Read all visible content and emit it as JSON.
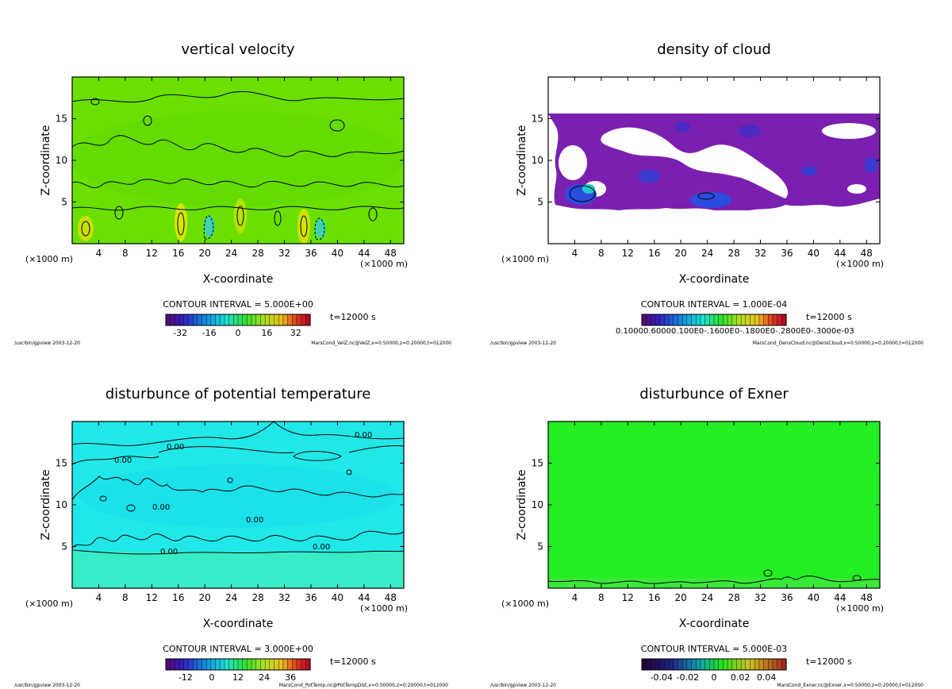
{
  "colors": {
    "vertical_velocity_field": "#6be000",
    "density_of_cloud_field": "#7a1fb0",
    "potential_temperature_field": "#21e8e8",
    "exner_field": "#22ee22",
    "contour": "#000000"
  },
  "chart_data": [
    {
      "type": "heatmap",
      "title": "vertical velocity",
      "xlabel": "X-coordinate",
      "ylabel": "Z-coordinate",
      "x_unit_left": "(×1000 m)",
      "x_unit_right": "(×1000 m)",
      "xlim": [
        0,
        50
      ],
      "ylim": [
        0,
        20
      ],
      "xticks": [
        4,
        8,
        12,
        16,
        20,
        24,
        28,
        32,
        36,
        40,
        44,
        48
      ],
      "yticks": [
        5,
        10,
        15
      ],
      "contour_interval": "CONTOUR INTERVAL = 5.000E+00",
      "time": "t=12000 s",
      "colorbar_ticks": [
        "-32",
        "-16",
        "0",
        "16",
        "32"
      ],
      "colorbar_tick_values": [
        -32,
        -16,
        0,
        16,
        32
      ],
      "colorbar_range": [
        -40,
        40
      ],
      "footer_left": "/usr/bin/gpview  2003-12-20",
      "footer_right": "MarsCond_VelZ.nc@VelZ,x=0:50000,z=0:20000,t=012000"
    },
    {
      "type": "heatmap",
      "title": "density of cloud",
      "xlabel": "X-coordinate",
      "ylabel": "Z-coordinate",
      "x_unit_left": "(×1000 m)",
      "x_unit_right": "(×1000 m)",
      "xlim": [
        0,
        50
      ],
      "ylim": [
        0,
        20
      ],
      "xticks": [
        4,
        8,
        12,
        16,
        20,
        24,
        28,
        32,
        36,
        40,
        44,
        48
      ],
      "yticks": [
        5,
        10,
        15
      ],
      "contour_interval": "CONTOUR INTERVAL = 1.000E-04",
      "time": "t=12000 s",
      "colorbar_overlap_label": "0.10000.60000.100E0-.1600E0-.1800E0-.2800E0-.3000e-03",
      "footer_left": "/usr/bin/gpview  2003-12-20",
      "footer_right": "MarsCond_DensCloud.nc@DensCloud,x=0:50000,z=0:20000,t=012000"
    },
    {
      "type": "heatmap",
      "title": "disturbunce of potential temperature",
      "xlabel": "X-coordinate",
      "ylabel": "Z-coordinate",
      "x_unit_left": "(×1000 m)",
      "x_unit_right": "(×1000 m)",
      "xlim": [
        0,
        50
      ],
      "ylim": [
        0,
        20
      ],
      "xticks": [
        4,
        8,
        12,
        16,
        20,
        24,
        28,
        32,
        36,
        40,
        44,
        48
      ],
      "yticks": [
        5,
        10,
        15
      ],
      "contour_labels": [
        "0.00",
        "0.00",
        "0.00",
        "0.00",
        "0.00",
        "0.00",
        "0.00"
      ],
      "contour_interval": "CONTOUR INTERVAL = 3.000E+00",
      "time": "t=12000 s",
      "colorbar_ticks": [
        "-12",
        "0",
        "12",
        "24",
        "36"
      ],
      "colorbar_tick_values": [
        -12,
        0,
        12,
        24,
        36
      ],
      "colorbar_range": [
        -21,
        45
      ],
      "footer_left": "/usr/bin/gpview  2003-12-20",
      "footer_right": "MarsCond_PotTemp.nc@PotTempDist,x=0:50000,z=0:20000,t=012000"
    },
    {
      "type": "heatmap",
      "title": "disturbunce of Exner",
      "xlabel": "X-coordinate",
      "ylabel": "Z-coordinate",
      "x_unit_left": "(×1000 m)",
      "x_unit_right": "(×1000 m)",
      "xlim": [
        0,
        50
      ],
      "ylim": [
        0,
        20
      ],
      "xticks": [
        4,
        8,
        12,
        16,
        20,
        24,
        28,
        32,
        36,
        40,
        44,
        48
      ],
      "yticks": [
        5,
        10,
        15
      ],
      "contour_interval": "CONTOUR INTERVAL = 5.000E-03",
      "time": "t=12000 s",
      "colorbar_ticks": [
        "-0.04",
        "-0.02",
        "0",
        "0.02",
        "0.04"
      ],
      "colorbar_tick_values": [
        -0.04,
        -0.02,
        0,
        0.02,
        0.04
      ],
      "colorbar_range": [
        -0.055,
        0.055
      ],
      "footer_left": "/usr/bin/gpview  2003-12-20",
      "footer_right": "MarsCond_Exner.nc@Exner,x=0:50000,z=0:20000,t=012000"
    }
  ]
}
